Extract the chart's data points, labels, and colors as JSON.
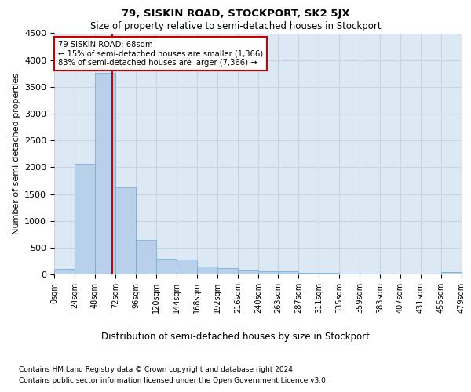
{
  "title": "79, SISKIN ROAD, STOCKPORT, SK2 5JX",
  "subtitle": "Size of property relative to semi-detached houses in Stockport",
  "xlabel": "Distribution of semi-detached houses by size in Stockport",
  "ylabel": "Number of semi-detached properties",
  "footnote1": "Contains HM Land Registry data © Crown copyright and database right 2024.",
  "footnote2": "Contains public sector information licensed under the Open Government Licence v3.0.",
  "annotation_title": "79 SISKIN ROAD: 68sqm",
  "annotation_line1": "← 15% of semi-detached houses are smaller (1,366)",
  "annotation_line2": "83% of semi-detached houses are larger (7,366) →",
  "property_size": 68,
  "bin_edges": [
    0,
    24,
    48,
    72,
    96,
    120,
    144,
    168,
    192,
    216,
    240,
    263,
    287,
    311,
    335,
    359,
    383,
    407,
    431,
    455,
    479
  ],
  "bin_counts": [
    100,
    2060,
    3760,
    1620,
    650,
    290,
    280,
    145,
    110,
    80,
    65,
    55,
    30,
    25,
    15,
    10,
    5,
    0,
    0,
    40
  ],
  "bar_color": "#b8d0ea",
  "bar_edge_color": "#7aafd4",
  "vline_color": "#cc0000",
  "vline_x": 68,
  "grid_color": "#c8d4e0",
  "bg_color": "#dce8f4",
  "annotation_box_color": "#ffffff",
  "annotation_box_edge": "#cc0000",
  "ylim": [
    0,
    4500
  ],
  "yticks": [
    0,
    500,
    1000,
    1500,
    2000,
    2500,
    3000,
    3500,
    4000,
    4500
  ]
}
